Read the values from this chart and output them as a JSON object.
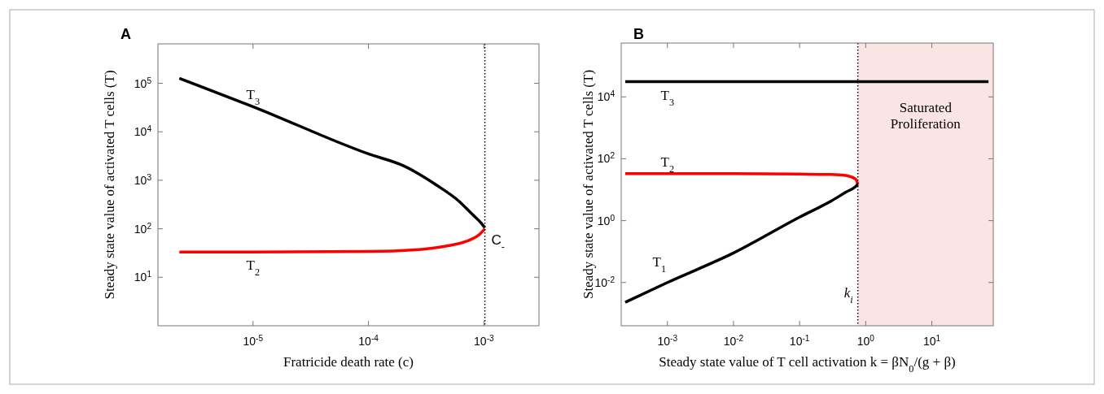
{
  "chart_data": [
    {
      "type": "line",
      "title": "A",
      "xlabel": "Fratricide death rate (c)",
      "ylabel": "Steady state value of activated T cells (T)",
      "log": "xy",
      "grid": false,
      "marker": "none",
      "line_style": "solid",
      "xlim": [
        1.5e-06,
        0.003
      ],
      "xticks": [
        {
          "value": 1e-05,
          "label": "10$^{-5}$"
        },
        {
          "value": 0.0001,
          "label": "10$^{-4}$"
        },
        {
          "value": 0.001,
          "label": "10$^{-3}$"
        }
      ],
      "ylim": [
        1,
        650000
      ],
      "yticks": [
        {
          "value": 10,
          "label": "10$^{1}$"
        },
        {
          "value": 100,
          "label": "10$^{2}$"
        },
        {
          "value": 1000,
          "label": "10$^{3}$"
        },
        {
          "value": 10000,
          "label": "10$^{4}$"
        },
        {
          "value": 100000,
          "label": "10$^{5}$"
        }
      ],
      "series": [
        {
          "name": "T$_{3}$",
          "color": "#000000",
          "x": [
            2.3e-06,
            1e-05,
            0.0001,
            0.0002,
            0.0004,
            0.0006,
            0.0008,
            0.00095,
            0.00102
          ],
          "values": [
            127000,
            33000,
            3500,
            2000,
            760,
            380,
            195,
            130,
            105
          ]
        },
        {
          "name": "T$_{2}$",
          "color": "#ff0000",
          "x": [
            2.3e-06,
            1e-05,
            0.0001,
            0.0003,
            0.0005,
            0.0007,
            0.0009,
            0.00102
          ],
          "values": [
            33,
            33,
            34,
            38,
            45,
            55,
            74,
            100
          ]
        }
      ],
      "ref_lines": [
        {
          "axis": "x",
          "value": 0.00102,
          "label": "C$_{-}$",
          "line_style": "dotted",
          "color": "#000000"
        }
      ]
    },
    {
      "type": "line",
      "title": "B",
      "xlabel": "Steady state value of T cell activation  k = βN$_{0}$/(g + β)",
      "ylabel": "Steady state value of activated T cells (T)",
      "log": "xy",
      "grid": false,
      "marker": "none",
      "line_style": "solid",
      "xlim": [
        0.0002,
        85
      ],
      "xticks": [
        {
          "value": 0.001,
          "label": "10$^{-3}$"
        },
        {
          "value": 0.01,
          "label": "10$^{-2}$"
        },
        {
          "value": 0.1,
          "label": "10$^{-1}$"
        },
        {
          "value": 1,
          "label": "10$^{0}$"
        },
        {
          "value": 10,
          "label": "10$^{1}$"
        }
      ],
      "ylim": [
        0.0004,
        550000
      ],
      "yticks": [
        {
          "value": 0.01,
          "label": "10$^{-2}$"
        },
        {
          "value": 1,
          "label": "10$^{0}$"
        },
        {
          "value": 100,
          "label": "10$^{2}$"
        },
        {
          "value": 10000,
          "label": "10$^{4}$"
        }
      ],
      "series": [
        {
          "name": "T$_{3}$",
          "color": "#000000",
          "x": [
            0.00023,
            0.001,
            72
          ],
          "values": [
            31000,
            31000,
            31000
          ]
        },
        {
          "name": "T$_{2}$",
          "color": "#ff0000",
          "x": [
            0.00023,
            0.001,
            0.01,
            0.1,
            0.3,
            0.5,
            0.7,
            0.76
          ],
          "values": [
            33,
            33,
            33,
            32,
            31,
            29,
            22,
            15
          ]
        },
        {
          "name": "T$_{1}$",
          "color": "#000000",
          "x": [
            0.00023,
            0.001,
            0.01,
            0.1,
            0.3,
            0.5,
            0.7,
            0.76
          ],
          "values": [
            0.0023,
            0.01,
            0.09,
            1.3,
            4.3,
            8.3,
            12.6,
            15
          ]
        }
      ],
      "ref_lines": [
        {
          "axis": "x",
          "value": 0.76,
          "label": "k$_{i}$",
          "line_style": "dotted",
          "color": "#000000"
        }
      ],
      "bands": [
        {
          "axis": "x",
          "from": 0.76,
          "to": 85,
          "label": "Saturated Proliferation",
          "color": "#fbe4e4"
        }
      ]
    }
  ]
}
